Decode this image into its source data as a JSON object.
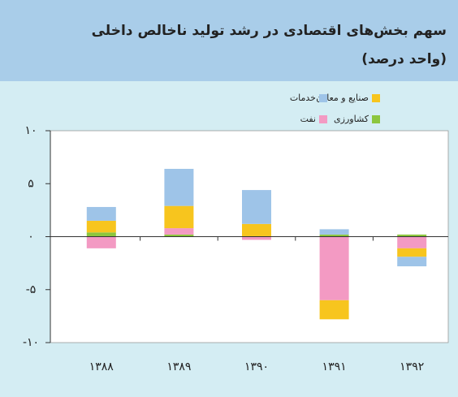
{
  "chart_data": {
    "type": "bar",
    "stacked": true,
    "title": "سهم بخش‌های اقتصادی در رشد تولید ناخالص داخلی",
    "subtitle": "(واحد درصد)",
    "categories": [
      "۱۳۸۸",
      "۱۳۸۹",
      "۱۳۹۰",
      "۱۳۹۱",
      "۱۳۹۲"
    ],
    "series": [
      {
        "name": "کشاورزی",
        "color": "#8cc63e",
        "values": [
          0.4,
          0.2,
          0,
          0.2,
          0.2
        ]
      },
      {
        "name": "نفت",
        "color": "#f39ac3",
        "values": [
          -1.1,
          0.6,
          -0.3,
          -6.0,
          -1.1
        ]
      },
      {
        "name": "صنایع و معادن",
        "color": "#f7c51e",
        "values": [
          1.1,
          2.1,
          1.2,
          -1.8,
          -0.8
        ]
      },
      {
        "name": "خدمات",
        "color": "#9ec4e8",
        "values": [
          1.3,
          3.5,
          3.2,
          0.5,
          -0.9
        ]
      }
    ],
    "ylim": [
      -10,
      10
    ],
    "yticks": [
      {
        "value": -10,
        "label": "-۱۰"
      },
      {
        "value": -5,
        "label": "-۵"
      },
      {
        "value": 0,
        "label": "۰"
      },
      {
        "value": 5,
        "label": "۵"
      },
      {
        "value": 10,
        "label": "۱۰"
      }
    ]
  }
}
